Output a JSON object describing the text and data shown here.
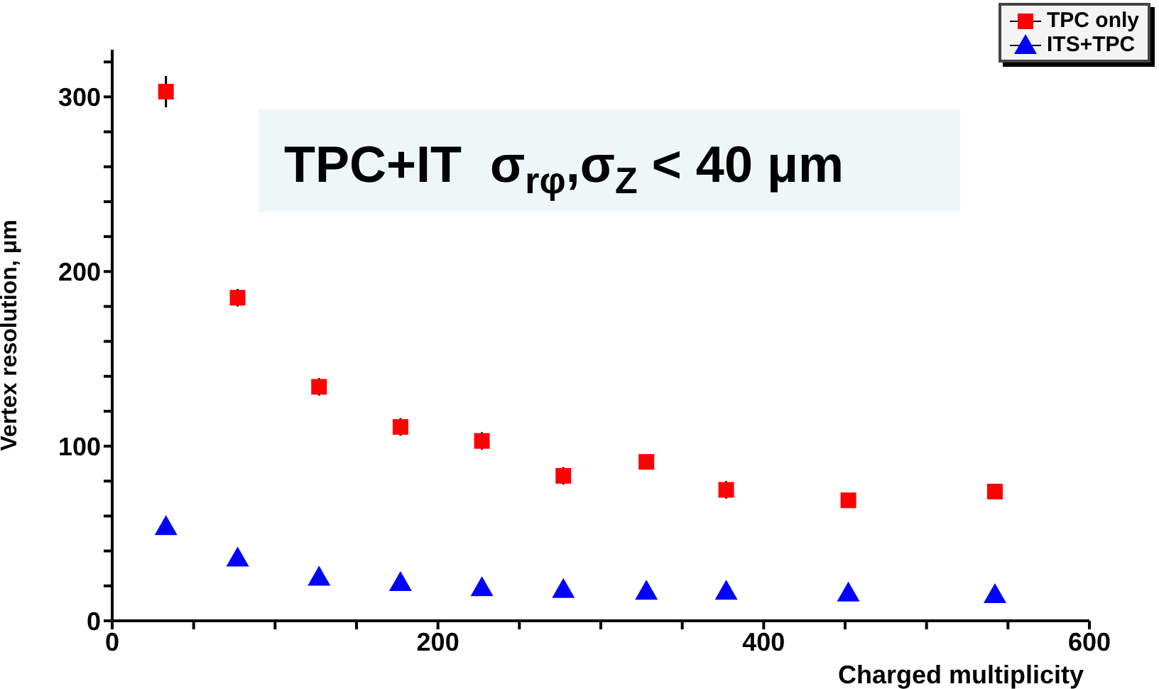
{
  "chart_data": {
    "type": "scatter",
    "xlabel": "Charged multiplicity",
    "ylabel": "Vertex resolution, μm",
    "annotations": [
      "TPC+IT  σ$_{rφ}$,σ$_{Z}$ < 40 μm"
    ],
    "x": [
      33,
      77,
      127,
      177,
      227,
      277,
      328,
      377,
      452,
      542
    ],
    "series": [
      {
        "name": "TPC only",
        "color": "#ff0000",
        "marker": "square",
        "values": [
          303,
          185,
          134,
          111,
          103,
          83,
          91,
          75,
          69,
          74
        ],
        "errors": [
          9,
          5,
          5,
          5,
          5,
          5,
          null,
          5,
          null,
          null
        ]
      },
      {
        "name": "ITS+TPC",
        "color": "#0000ff",
        "marker": "triangle",
        "values": [
          54,
          36,
          25,
          22,
          19,
          18,
          17,
          17,
          16,
          15
        ]
      }
    ],
    "xlim": [
      0,
      600
    ],
    "xticks": [
      0,
      {
        "value": 50,
        "label": null
      },
      {
        "value": 100,
        "label": null
      },
      {
        "value": 150,
        "label": null
      },
      200,
      {
        "value": 250,
        "label": null
      },
      {
        "value": 300,
        "label": null
      },
      {
        "value": 350,
        "label": null
      },
      400,
      {
        "value": 450,
        "label": null
      },
      {
        "value": 500,
        "label": null
      },
      {
        "value": 550,
        "label": null
      },
      600
    ],
    "ylim": [
      0,
      327
    ],
    "yticks": [
      0,
      {
        "value": 20,
        "label": null
      },
      {
        "value": 40,
        "label": null
      },
      {
        "value": 60,
        "label": null
      },
      {
        "value": 80,
        "label": null
      },
      100,
      {
        "value": 120,
        "label": null
      },
      {
        "value": 140,
        "label": null
      },
      {
        "value": 160,
        "label": null
      },
      {
        "value": 180,
        "label": null
      },
      200,
      {
        "value": 220,
        "label": null
      },
      {
        "value": 240,
        "label": null
      },
      {
        "value": 260,
        "label": null
      },
      {
        "value": 280,
        "label": null
      },
      300,
      {
        "value": 320,
        "label": null
      }
    ],
    "grid": false,
    "legend": "top right"
  }
}
